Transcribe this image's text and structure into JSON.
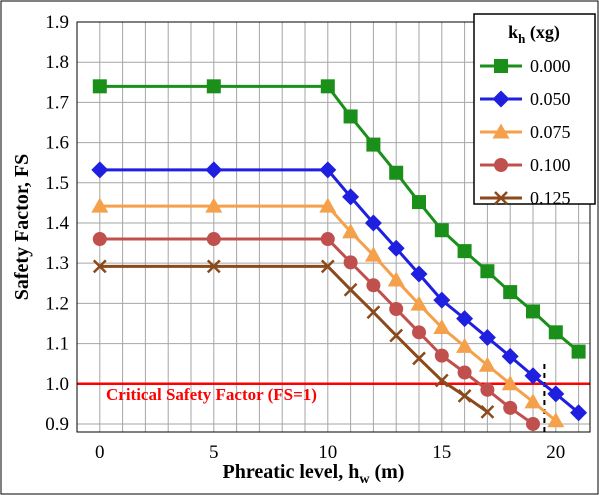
{
  "chart_data": {
    "type": "line",
    "xlabel_main": "Phreatic level, h",
    "xlabel_sub": "w",
    "xlabel_tail": " (m)",
    "ylabel": "Safety Factor, FS",
    "xlim": [
      -1,
      21.5
    ],
    "ylim": [
      0.88,
      1.9
    ],
    "x_ticks": [
      0,
      5,
      10,
      15,
      20
    ],
    "y_ticks": [
      0.9,
      1.0,
      1.1,
      1.2,
      1.3,
      1.4,
      1.5,
      1.6,
      1.7,
      1.8,
      1.9
    ],
    "x_tick_labels": [
      "0",
      "5",
      "10",
      "15",
      "20"
    ],
    "y_tick_labels": [
      "0.9",
      "1.0",
      "1.1",
      "1.2",
      "1.3",
      "1.4",
      "1.5",
      "1.6",
      "1.7",
      "1.8",
      "1.9"
    ],
    "grid": true,
    "legend": {
      "placement": "top-right",
      "title_main": "k",
      "title_sub": "h",
      "title_tail": " (xg)"
    },
    "series": [
      {
        "name": "0.000",
        "color": "#1a8f1a",
        "marker": "square",
        "points": [
          [
            0,
            1.74
          ],
          [
            5,
            1.74
          ],
          [
            10,
            1.74
          ],
          [
            11,
            1.665
          ],
          [
            12,
            1.595
          ],
          [
            13,
            1.525
          ],
          [
            14,
            1.452
          ],
          [
            15,
            1.382
          ],
          [
            16,
            1.33
          ],
          [
            17,
            1.28
          ],
          [
            18,
            1.228
          ],
          [
            19,
            1.18
          ],
          [
            20,
            1.128
          ],
          [
            21,
            1.08
          ]
        ]
      },
      {
        "name": "0.050",
        "color": "#1f1fe0",
        "marker": "diamond",
        "points": [
          [
            0,
            1.532
          ],
          [
            5,
            1.532
          ],
          [
            10,
            1.532
          ],
          [
            11,
            1.465
          ],
          [
            12,
            1.4
          ],
          [
            13,
            1.337
          ],
          [
            14,
            1.273
          ],
          [
            15,
            1.208
          ],
          [
            16,
            1.162
          ],
          [
            17,
            1.115
          ],
          [
            18,
            1.068
          ],
          [
            19,
            1.02
          ],
          [
            20,
            0.975
          ],
          [
            21,
            0.928
          ]
        ]
      },
      {
        "name": "0.075",
        "color": "#f5a04a",
        "marker": "triangle",
        "points": [
          [
            0,
            1.442
          ],
          [
            5,
            1.442
          ],
          [
            10,
            1.442
          ],
          [
            11,
            1.378
          ],
          [
            12,
            1.32
          ],
          [
            13,
            1.258
          ],
          [
            14,
            1.198
          ],
          [
            15,
            1.14
          ],
          [
            16,
            1.093
          ],
          [
            17,
            1.046
          ],
          [
            18,
            1.0
          ],
          [
            19,
            0.955
          ],
          [
            20,
            0.908
          ]
        ]
      },
      {
        "name": "0.100",
        "color": "#c0504d",
        "marker": "circle",
        "points": [
          [
            0,
            1.36
          ],
          [
            5,
            1.36
          ],
          [
            10,
            1.36
          ],
          [
            11,
            1.302
          ],
          [
            12,
            1.245
          ],
          [
            13,
            1.186
          ],
          [
            14,
            1.128
          ],
          [
            15,
            1.07
          ],
          [
            16,
            1.028
          ],
          [
            17,
            0.985
          ],
          [
            18,
            0.94
          ],
          [
            19,
            0.9
          ]
        ]
      },
      {
        "name": "0.125",
        "color": "#8b4a1c",
        "marker": "x",
        "points": [
          [
            0,
            1.292
          ],
          [
            5,
            1.292
          ],
          [
            10,
            1.292
          ],
          [
            11,
            1.234
          ],
          [
            12,
            1.178
          ],
          [
            13,
            1.12
          ],
          [
            14,
            1.063
          ],
          [
            15,
            1.008
          ],
          [
            16,
            0.97
          ],
          [
            17,
            0.93
          ]
        ]
      }
    ],
    "critical_line": {
      "value": 1.0,
      "color": "#ff0000",
      "label": "Critical Safety Factor (FS=1)"
    },
    "dashed_marker": {
      "x": 19.5,
      "y_from": 0.88,
      "y_to": 1.05
    }
  }
}
